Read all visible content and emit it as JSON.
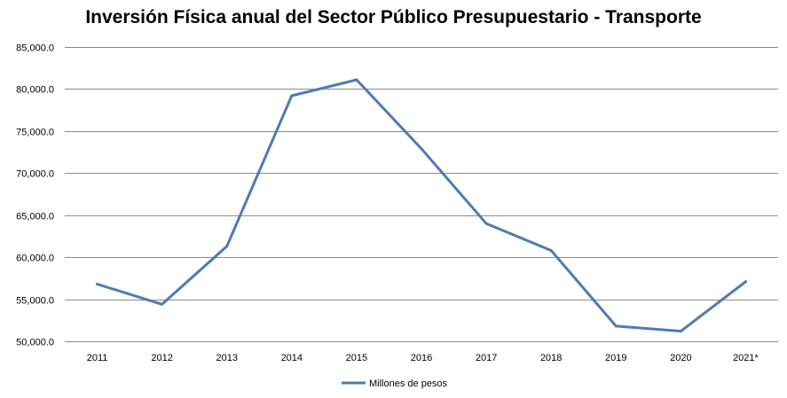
{
  "chart_data": {
    "type": "line",
    "title": "Inversión Física anual del Sector Público Presupuestario - Transporte",
    "xlabel": "",
    "ylabel": "",
    "categories": [
      "2011",
      "2012",
      "2013",
      "2014",
      "2015",
      "2016",
      "2017",
      "2018",
      "2019",
      "2020",
      "2021*"
    ],
    "series": [
      {
        "name": "Millones de pesos",
        "color": "#4F7BB0",
        "values": [
          56800,
          54400,
          61300,
          79200,
          81100,
          72900,
          64000,
          60800,
          51800,
          51200,
          57100
        ]
      }
    ],
    "ylim": [
      50000,
      85000
    ],
    "yticks": [
      50000,
      55000,
      60000,
      65000,
      70000,
      75000,
      80000,
      85000
    ],
    "ytick_labels": [
      "50,000.0",
      "55,000.0",
      "60,000.0",
      "65,000.0",
      "70,000.0",
      "75,000.0",
      "80,000.0",
      "85,000.0"
    ],
    "grid": true,
    "legend_position": "bottom-center"
  }
}
